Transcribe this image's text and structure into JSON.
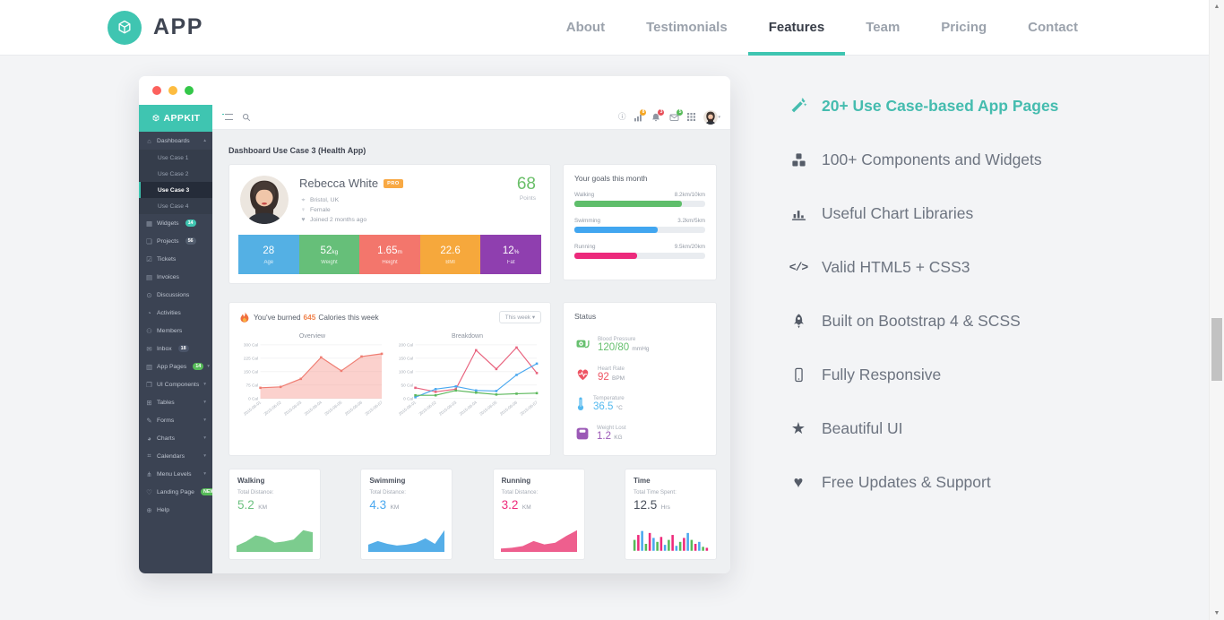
{
  "navbar": {
    "brand": "APP",
    "links": [
      "About",
      "Testimonials",
      "Features",
      "Team",
      "Pricing",
      "Contact"
    ],
    "active_link": "Features",
    "accent_color": "#3fc5b1"
  },
  "features": {
    "highlight_color": "#45bcaf",
    "items": [
      {
        "icon": "magic-wand-icon",
        "label": "20+ Use Case-based App Pages",
        "highlight": true
      },
      {
        "icon": "cubes-icon",
        "label": "100+ Components and Widgets"
      },
      {
        "icon": "bar-chart-icon",
        "label": "Useful Chart Libraries"
      },
      {
        "icon": "code-icon",
        "label": "Valid HTML5 + CSS3"
      },
      {
        "icon": "rocket-icon",
        "label": "Built on Bootstrap 4 & SCSS"
      },
      {
        "icon": "mobile-icon",
        "label": "Fully Responsive"
      },
      {
        "icon": "star-icon",
        "label": "Beautiful UI"
      },
      {
        "icon": "heart-icon",
        "label": "Free Updates & Support"
      }
    ]
  },
  "mockup": {
    "brand": "APPKIT",
    "page_title": "Dashboard Use Case 3 (Health App)",
    "sidebar": {
      "items": [
        {
          "icon": "home-icon",
          "label": "Dashboards",
          "expanded": true,
          "children": [
            {
              "label": "Use Case 1"
            },
            {
              "label": "Use Case 2"
            },
            {
              "label": "Use Case 3",
              "active": true
            },
            {
              "label": "Use Case 4"
            }
          ]
        },
        {
          "icon": "widgets-icon",
          "label": "Widgets",
          "badge": "14",
          "badge_color": "#3fc5b1"
        },
        {
          "icon": "projects-icon",
          "label": "Projects",
          "badge": "56",
          "badge_color": "#525d6e"
        },
        {
          "icon": "tickets-icon",
          "label": "Tickets"
        },
        {
          "icon": "invoices-icon",
          "label": "Invoices"
        },
        {
          "icon": "discussions-icon",
          "label": "Discussions"
        },
        {
          "icon": "activities-icon",
          "label": "Activities"
        },
        {
          "icon": "members-icon",
          "label": "Members"
        },
        {
          "icon": "inbox-icon",
          "label": "Inbox",
          "badge": "18",
          "badge_color": "#4a5468"
        },
        {
          "icon": "app-pages-icon",
          "label": "App Pages",
          "badge": "14",
          "badge_color": "#56bb58",
          "caret": true
        },
        {
          "icon": "ui-components-icon",
          "label": "UI Components",
          "caret": true
        },
        {
          "icon": "tables-icon",
          "label": "Tables",
          "caret": true
        },
        {
          "icon": "forms-icon",
          "label": "Forms",
          "caret": true
        },
        {
          "icon": "charts-icon",
          "label": "Charts",
          "caret": true
        },
        {
          "icon": "calendars-icon",
          "label": "Calendars",
          "caret": true
        },
        {
          "icon": "menu-levels-icon",
          "label": "Menu Levels",
          "caret": true
        },
        {
          "icon": "landing-page-icon",
          "label": "Landing Page",
          "badge": "NEW",
          "badge_color": "#56bb58"
        },
        {
          "icon": "help-icon",
          "label": "Help"
        }
      ]
    },
    "topbar": {
      "notifications": [
        {
          "icon": "stats-icon",
          "count": "8",
          "color": "#f5a623"
        },
        {
          "icon": "bell-icon",
          "count": "3",
          "color": "#e7505a"
        },
        {
          "icon": "mail-icon",
          "count": "5",
          "color": "#56bb58"
        }
      ]
    },
    "profile": {
      "name": "Rebecca White",
      "badge": "PRO",
      "details": [
        {
          "icon": "location-icon",
          "text": "Bristol, UK"
        },
        {
          "icon": "gender-icon",
          "text": "Female"
        },
        {
          "icon": "joined-icon",
          "text": "Joined 2 months ago"
        }
      ],
      "points": "68",
      "points_label": "Points",
      "points_color": "#6abf69",
      "stats": [
        {
          "value": "28",
          "unit": "",
          "label": "Age",
          "color": "#54b0e4"
        },
        {
          "value": "52",
          "unit": "kg",
          "label": "Weight",
          "color": "#66bf79"
        },
        {
          "value": "1.65",
          "unit": "m",
          "label": "Height",
          "color": "#f3766c"
        },
        {
          "value": "22.6",
          "unit": "",
          "label": "BMI",
          "color": "#f6a83c"
        },
        {
          "value": "12",
          "unit": "%",
          "label": "Fat",
          "color": "#8f3faf"
        }
      ]
    },
    "calories": {
      "text_before": "You've burned",
      "value": "645",
      "text_after": "Calories this week",
      "value_color": "#f0834d",
      "period_button": "This week ▾"
    },
    "goals": {
      "title": "Your goals this month",
      "items": [
        {
          "label": "Walking",
          "value": "8.2km/10km",
          "percent": 82,
          "color": "#5fbe6b"
        },
        {
          "label": "Swimming",
          "value": "3.2km/5km",
          "percent": 64,
          "color": "#41a6f0"
        },
        {
          "label": "Running",
          "value": "9.5km/20km",
          "percent": 48,
          "color": "#ec2a7c"
        }
      ]
    },
    "status": {
      "title": "Status",
      "items": [
        {
          "icon": "blood-pressure-icon",
          "label": "Blood Pressure",
          "value": "120/80",
          "unit": "mmHg",
          "color": "#67c06f"
        },
        {
          "icon": "heart-rate-icon",
          "label": "Heart Rate",
          "value": "92",
          "unit": "BPM",
          "color": "#ee5564"
        },
        {
          "icon": "temperature-icon",
          "label": "Temperature",
          "value": "36.5",
          "unit": "°C",
          "color": "#54b9ef"
        },
        {
          "icon": "weight-icon",
          "label": "Weight Lost",
          "value": "1.2",
          "unit": "KG",
          "color": "#9b59b6"
        }
      ]
    },
    "summary": [
      {
        "title": "Walking",
        "sublabel": "Total Distance:",
        "value": "5.2",
        "unit": "KM",
        "color": "#6cc180",
        "chart_index": 2
      },
      {
        "title": "Swimming",
        "sublabel": "Total Distance:",
        "value": "4.3",
        "unit": "KM",
        "color": "#4aa8ef",
        "chart_index": 3
      },
      {
        "title": "Running",
        "sublabel": "Total Distance:",
        "value": "3.2",
        "unit": "KM",
        "color": "#ee2a7b",
        "chart_index": 4
      },
      {
        "title": "Time",
        "sublabel": "Total Time Spent:",
        "value": "12.5",
        "unit": "Hrs",
        "color": "#4a505c",
        "chart_index": 5
      }
    ]
  },
  "chart_data": [
    {
      "type": "area",
      "title": "Overview",
      "x": [
        "2015-06-01",
        "2015-06-02",
        "2015-06-03",
        "2015-06-04",
        "2015-06-05",
        "2015-06-06",
        "2015-06-07"
      ],
      "values": [
        60,
        65,
        110,
        230,
        155,
        235,
        250
      ],
      "ylim": [
        0,
        300
      ],
      "yticks": [
        0,
        75,
        150,
        225,
        300
      ],
      "ytick_suffix": " Cal",
      "color": "#ef7d72",
      "fill": "rgba(244,139,130,0.40)",
      "grid": true,
      "legend": "none"
    },
    {
      "type": "line",
      "title": "Breakdown",
      "x": [
        "2015-06-01",
        "2015-06-02",
        "2015-06-03",
        "2015-06-04",
        "2015-06-05",
        "2015-06-06",
        "2015-06-07"
      ],
      "series": [
        {
          "name": "series-pink",
          "color": "#e8637e",
          "values": [
            40,
            25,
            35,
            180,
            110,
            190,
            95
          ]
        },
        {
          "name": "series-blue",
          "color": "#4aa8ef",
          "values": [
            5,
            35,
            45,
            30,
            28,
            88,
            130
          ]
        },
        {
          "name": "series-green",
          "color": "#5cb85c",
          "values": [
            12,
            12,
            30,
            22,
            15,
            18,
            20
          ]
        }
      ],
      "ylim": [
        0,
        200
      ],
      "yticks": [
        0,
        50,
        100,
        150,
        200
      ],
      "ytick_suffix": " Cal",
      "grid": true,
      "legend": "none"
    },
    {
      "type": "area-spark",
      "title": "Walking sparkline",
      "values": [
        12,
        20,
        32,
        28,
        18,
        20,
        24,
        42,
        38
      ],
      "color": "#7ccc8e"
    },
    {
      "type": "area-spark",
      "title": "Swimming sparkline",
      "values": [
        16,
        24,
        18,
        14,
        16,
        20,
        30,
        18,
        48
      ],
      "color": "#55aee8"
    },
    {
      "type": "area-spark",
      "title": "Running sparkline",
      "values": [
        8,
        10,
        14,
        26,
        18,
        22,
        38,
        52
      ],
      "color": "#ee5f8e"
    },
    {
      "type": "bar-spark",
      "title": "Time spent bars",
      "values": [
        11,
        16,
        20,
        7,
        18,
        13,
        9,
        14,
        6,
        11,
        16,
        5,
        9,
        13,
        18,
        11,
        7,
        9,
        4,
        3
      ],
      "palette": [
        "#56bb58",
        "#ee2a7b",
        "#4aa8ef"
      ]
    }
  ]
}
